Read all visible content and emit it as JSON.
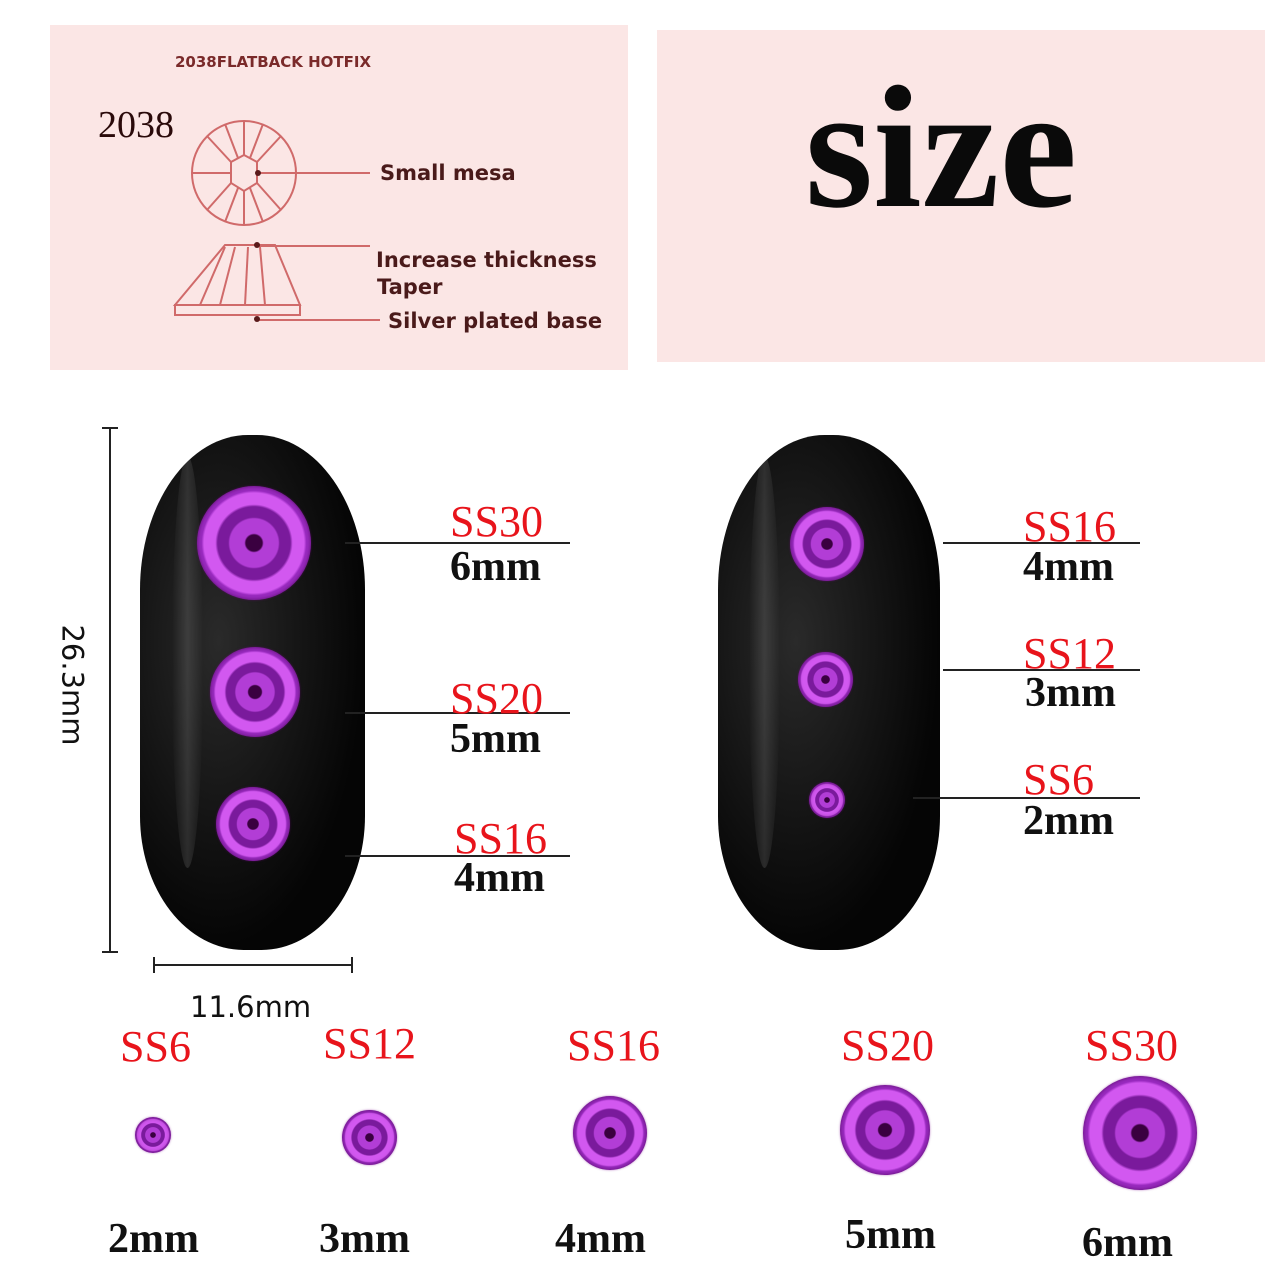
{
  "diagram": {
    "heading": "2038FLATBACK HOTFIX",
    "model": "2038",
    "labels": [
      "Small mesa",
      "Increase thickness",
      "Taper",
      "Silver plated base"
    ]
  },
  "title": "size",
  "dimensions": {
    "height": "26.3mm",
    "width": "11.6mm"
  },
  "left_nail": [
    {
      "ss": "SS30",
      "mm": "6mm"
    },
    {
      "ss": "SS20",
      "mm": "5mm"
    },
    {
      "ss": "SS16",
      "mm": "4mm"
    }
  ],
  "right_nail": [
    {
      "ss": "SS16",
      "mm": "4mm"
    },
    {
      "ss": "SS12",
      "mm": "3mm"
    },
    {
      "ss": "SS6",
      "mm": "2mm"
    }
  ],
  "size_row": [
    {
      "ss": "SS6",
      "mm": "2mm"
    },
    {
      "ss": "SS12",
      "mm": "3mm"
    },
    {
      "ss": "SS16",
      "mm": "4mm"
    },
    {
      "ss": "SS20",
      "mm": "5mm"
    },
    {
      "ss": "SS30",
      "mm": "6mm"
    }
  ],
  "colors": {
    "label_red": "#e8141b",
    "gem": "#b23dd6",
    "panel": "#fbe6e5",
    "diagram_line": "#d06a6a"
  }
}
